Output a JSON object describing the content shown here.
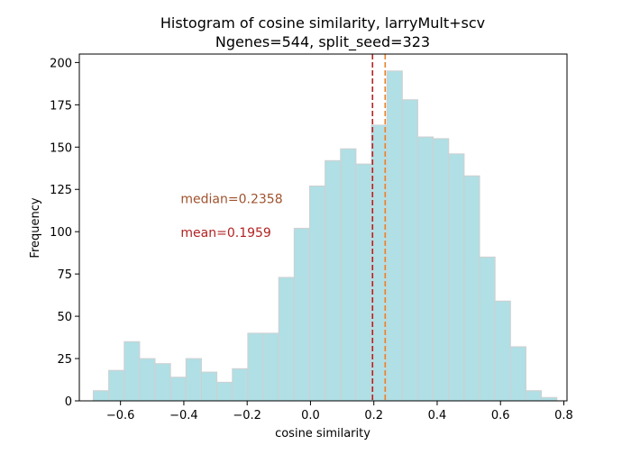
{
  "chart_data": {
    "type": "histogram",
    "title": "Histogram of cosine similarity, larryMult+scv",
    "subtitle": "Ngenes=544, split_seed=323",
    "xlabel": "cosine similarity",
    "ylabel": "Frequency",
    "xlim": [
      -0.73,
      0.81
    ],
    "ylim": [
      0,
      205
    ],
    "x_ticks": [
      -0.6,
      -0.4,
      -0.2,
      0.0,
      0.2,
      0.4,
      0.6,
      0.8
    ],
    "x_tick_labels": [
      "−0.6",
      "−0.4",
      "−0.2",
      "0.0",
      "0.2",
      "0.4",
      "0.6",
      "0.8"
    ],
    "y_ticks": [
      0,
      25,
      50,
      75,
      100,
      125,
      150,
      175,
      200
    ],
    "y_tick_labels": [
      "0",
      "25",
      "50",
      "75",
      "100",
      "125",
      "150",
      "175",
      "200"
    ],
    "bin_start": -0.686,
    "bin_width": 0.0488,
    "values": [
      6,
      18,
      35,
      25,
      22,
      14,
      25,
      17,
      11,
      19,
      40,
      40,
      73,
      102,
      127,
      142,
      149,
      140,
      163,
      195,
      178,
      156,
      155,
      146,
      133,
      85,
      59,
      32,
      6,
      2
    ],
    "bar_color": "#b0dfe5",
    "bar_edge_color": "#d0d0d0",
    "grid": false,
    "vlines": [
      {
        "name": "mean",
        "x": 0.1959,
        "color": "#b22222",
        "style": "dashed"
      },
      {
        "name": "median",
        "x": 0.2358,
        "color": "#e8822a",
        "style": "dashed"
      }
    ],
    "annotations": [
      {
        "text": "median=0.2358",
        "x": -0.41,
        "y": 117,
        "color": "#a0522d"
      },
      {
        "text": "mean=0.1959",
        "x": -0.41,
        "y": 97,
        "color": "#b22222"
      }
    ]
  }
}
